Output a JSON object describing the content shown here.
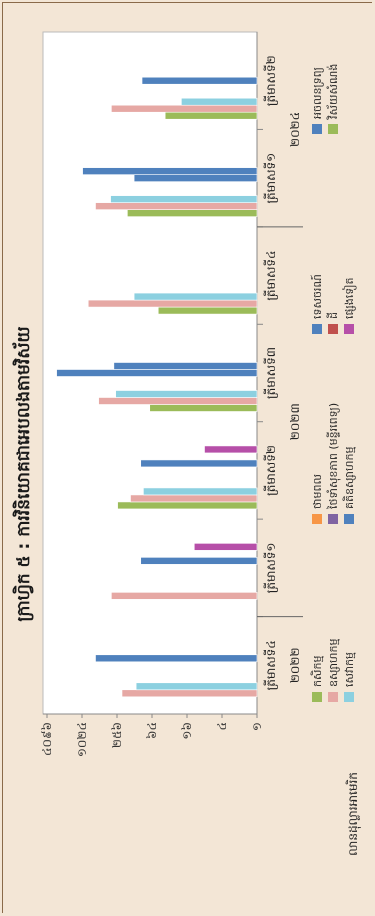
{
  "chart_data": {
    "type": "bar",
    "title": "ក្រាហ្វិក ៥ : ការវិនិយោគជាអេបលងតាមវិស័យ",
    "ylabel": "លានដុល្លារអាមេរិក",
    "y_scale": "log",
    "y_ticks": [
      "១",
      "៤",
      "១៦",
      "៦៤",
      "២៥៦",
      "១០២៤",
      "៤០៩៦"
    ],
    "y_tick_values": [
      1,
      4,
      16,
      64,
      256,
      1024,
      4096
    ],
    "ylim": [
      1,
      4096
    ],
    "categories": [
      "ត្រីមាសទី៤",
      "ត្រីមាសទី១",
      "ត្រីមាសទី២",
      "ត្រីមាសទី៣",
      "ត្រីមាសទី៤",
      "ត្រីមាសទី១",
      "ត្រីមាសទី២"
    ],
    "years": [
      {
        "label": "២០២២",
        "start": 0,
        "end": 0
      },
      {
        "label": "២០២៣",
        "start": 1,
        "end": 4
      },
      {
        "label": "២០២៤",
        "start": 5,
        "end": 6
      }
    ],
    "grid": false,
    "legend_position": "bottom",
    "series": [
      {
        "name": "កសិកម្ម",
        "color": "#9bbb59",
        "values": [
          null,
          null,
          250,
          70,
          50,
          170,
          38
        ]
      },
      {
        "name": "ឧស្សាហកម្ម",
        "color": "#e6a8a4",
        "values": [
          210,
          320,
          150,
          530,
          800,
          600,
          320
        ]
      },
      {
        "name": "សេវាកម្ម",
        "color": "#8cd0e0",
        "values": [
          120,
          null,
          90,
          270,
          130,
          330,
          20
        ]
      },
      {
        "name": "ថាមពល",
        "color": "#f79646",
        "values": [
          null,
          null,
          null,
          null,
          null,
          null,
          null
        ]
      },
      {
        "name": "ថៃទាំសុខភាព (មន្ទីរពេទ្យ)",
        "color": "#8064a2",
        "values": [
          null,
          null,
          null,
          null,
          null,
          null,
          null
        ]
      },
      {
        "name": "គតិឧស្សាហកម្ម",
        "color": "#4f81bd",
        "values": [
          null,
          null,
          null,
          2800,
          null,
          130,
          95
        ]
      },
      {
        "name": "ទេសចរណ៍",
        "color": "#4f81bd",
        "values": [
          600,
          100,
          100,
          290,
          null,
          1000,
          null
        ]
      },
      {
        "name": "ដី",
        "color": "#c0504d",
        "values": [
          null,
          null,
          null,
          null,
          null,
          null,
          null
        ]
      },
      {
        "name": "ផ្សេងទៀត",
        "color": "#b64fa8",
        "values": [
          null,
          12,
          8,
          null,
          null,
          null,
          null
        ]
      },
      {
        "name": "អចលនទ្រព្យ",
        "color": "#4f81bd",
        "values": [
          null,
          null,
          null,
          null,
          null,
          null,
          null
        ]
      },
      {
        "name": "វិស័យសំណង់",
        "color": "#9bbb59",
        "values": [
          null,
          null,
          null,
          null,
          null,
          null,
          null
        ]
      }
    ]
  }
}
